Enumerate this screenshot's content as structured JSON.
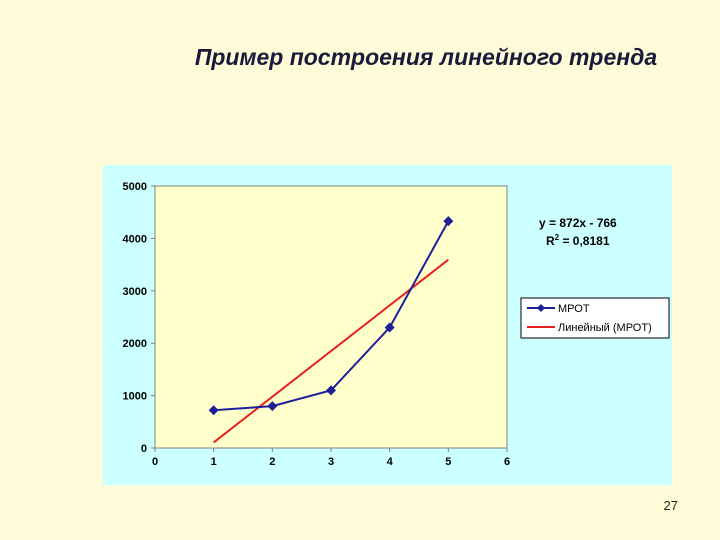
{
  "slide": {
    "title": "Пример построения линейного тренда",
    "page_number": "27"
  },
  "colors": {
    "background": "#fdfbd8",
    "chart_area": "#ccffff",
    "plot_area": "#ffffcc",
    "series_line": "#1f1f9a",
    "trend_line": "#e8201c"
  },
  "chart_data": {
    "type": "line",
    "title": "",
    "xlabel": "",
    "ylabel": "",
    "xlim": [
      0,
      6
    ],
    "ylim": [
      0,
      5000
    ],
    "x_ticks": [
      "0",
      "1",
      "2",
      "3",
      "4",
      "5",
      "6"
    ],
    "y_ticks": [
      "0",
      "1000",
      "2000",
      "3000",
      "4000",
      "5000"
    ],
    "grid": false,
    "legend_position": "right",
    "series": [
      {
        "name": "МРОТ",
        "marker": "diamond",
        "x": [
          1,
          2,
          3,
          4,
          5
        ],
        "y": [
          720,
          800,
          1100,
          2300,
          4330
        ]
      }
    ],
    "trendline": {
      "name": "Линейный (МРОТ)",
      "type": "linear",
      "slope": 872,
      "intercept": -766,
      "x_range": [
        1,
        5
      ]
    },
    "annotations": {
      "equation": "y = 872x - 766",
      "r_squared_label": "R",
      "r_squared_exp": "2",
      "r_squared_value": " = 0,8181"
    }
  }
}
